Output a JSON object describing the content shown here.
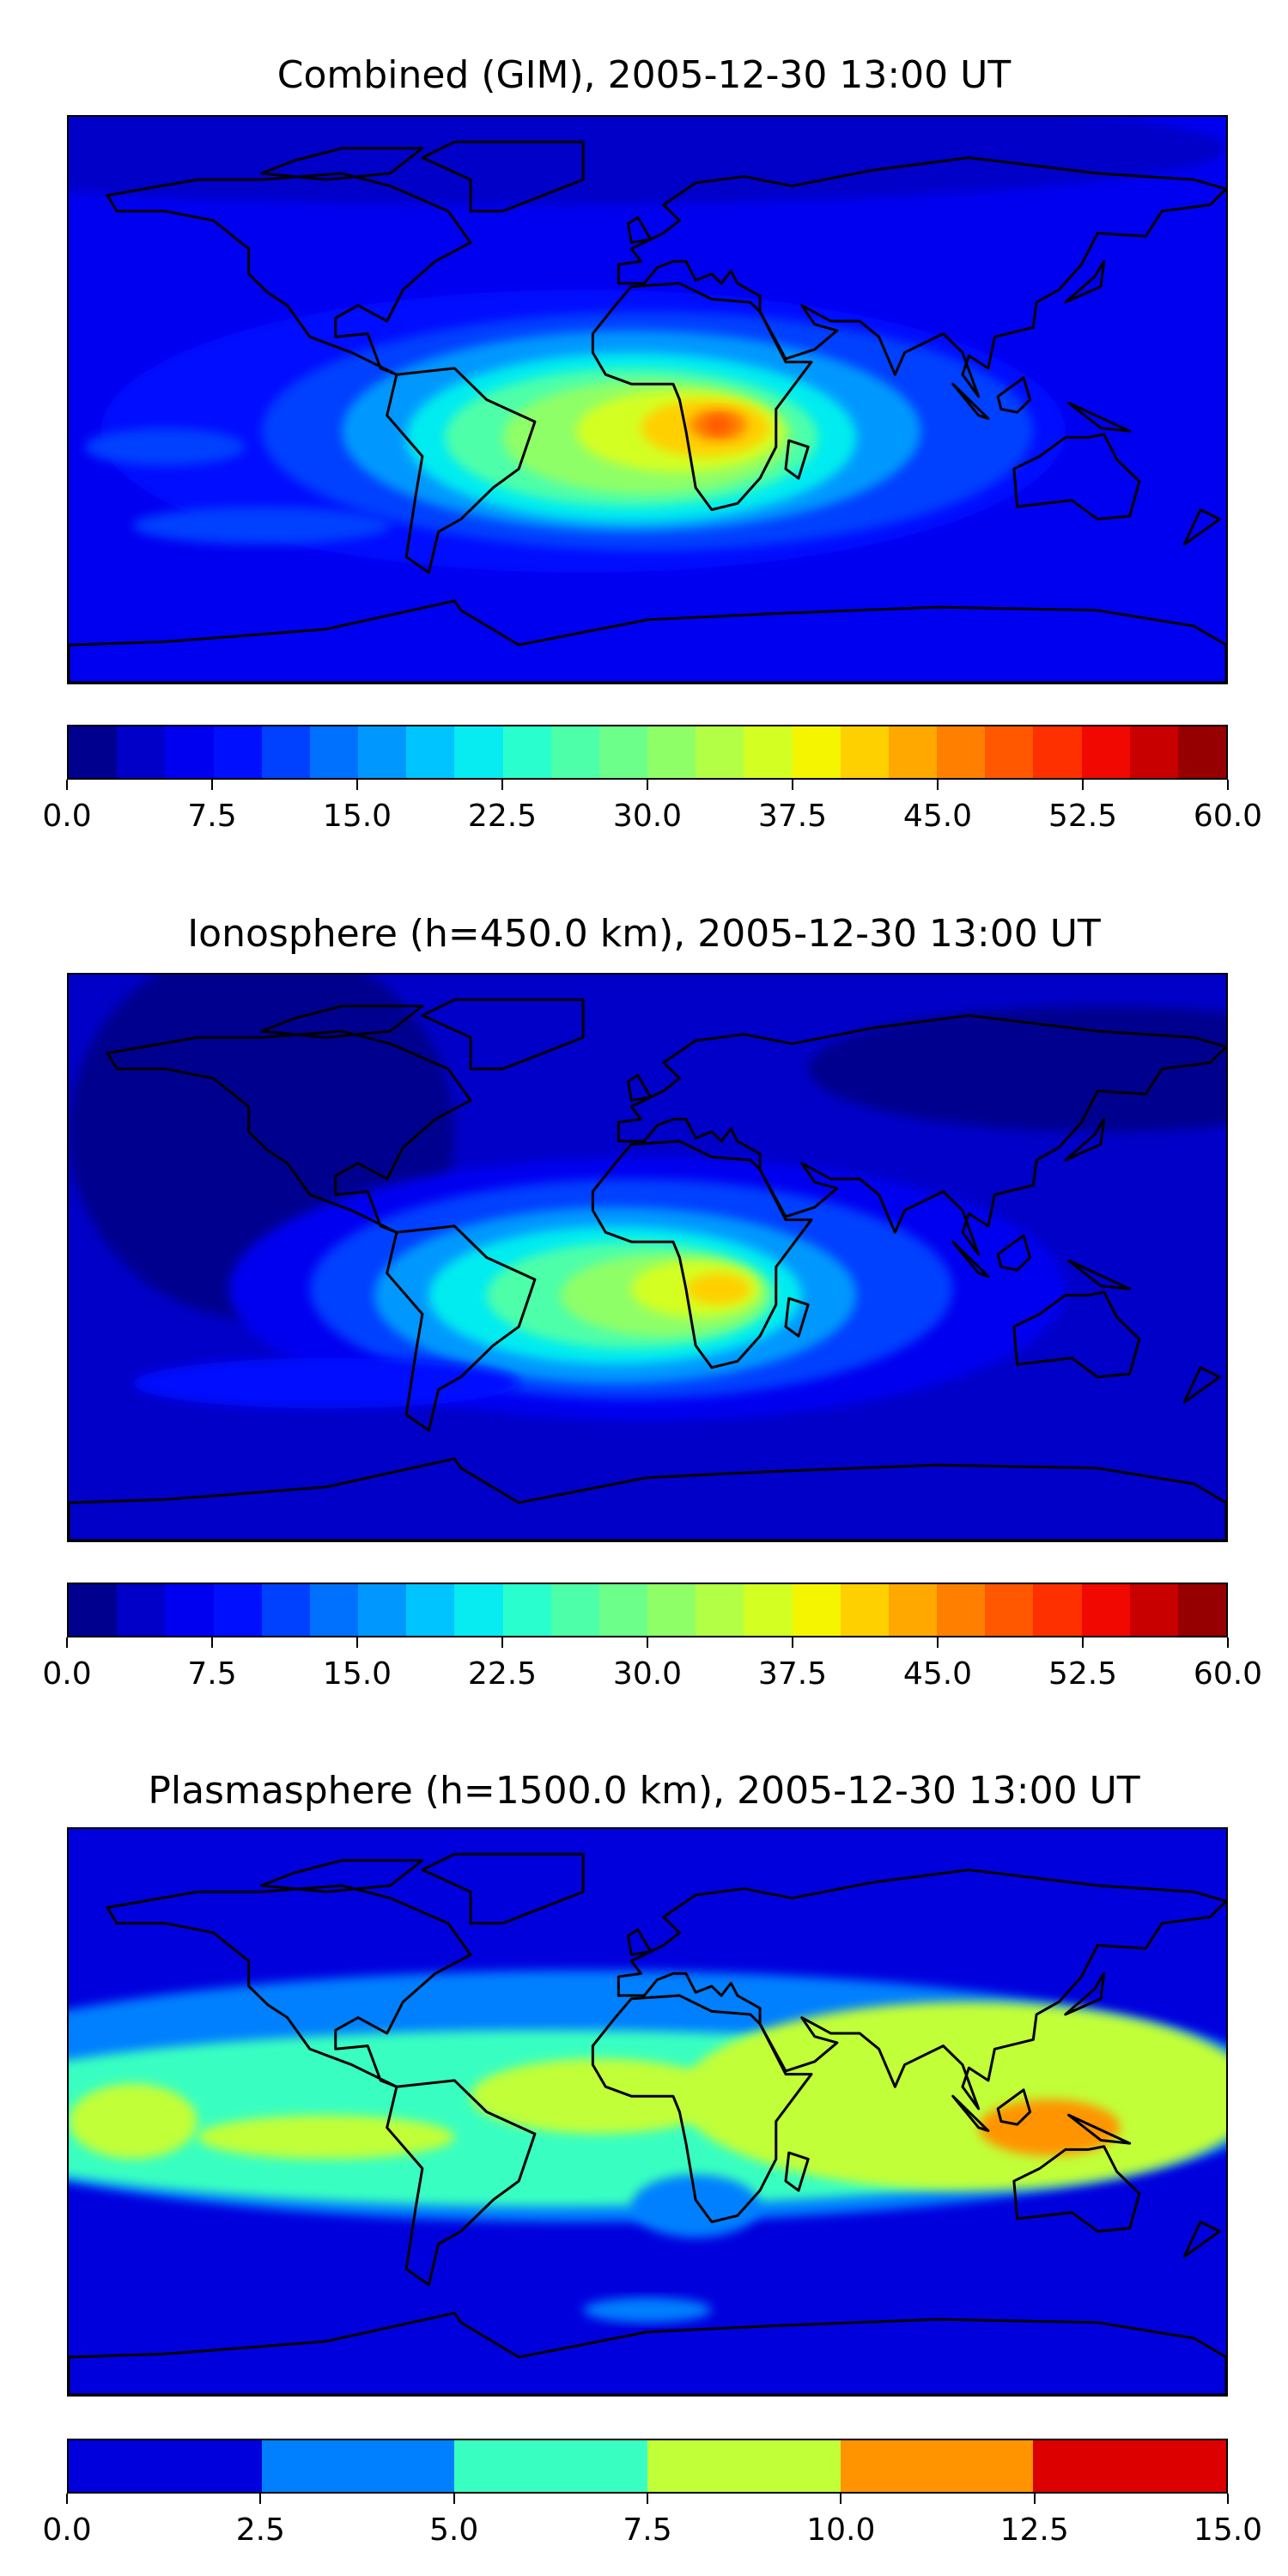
{
  "chart_data": [
    {
      "type": "heatmap",
      "title": "Combined (GIM), 2005-12-30 13:00 UT",
      "projection": "global lon/lat map with coastlines",
      "levels_min": 0.0,
      "levels_max": 60.0,
      "n_levels": 24,
      "colorbar_ticks": [
        "0.0",
        "7.5",
        "15.0",
        "22.5",
        "30.0",
        "37.5",
        "45.0",
        "52.5",
        "60.0"
      ],
      "colors": [
        "#00008f",
        "#0000c8",
        "#0000f0",
        "#0010ff",
        "#0040ff",
        "#0070ff",
        "#0098ff",
        "#00c4ff",
        "#06ecf0",
        "#29ffce",
        "#4dffa9",
        "#6cff8a",
        "#8fff68",
        "#b3ff45",
        "#d4ff23",
        "#f5f500",
        "#ffd000",
        "#ffa800",
        "#ff8000",
        "#ff5800",
        "#ff3000",
        "#f10800",
        "#c80000",
        "#960000"
      ],
      "max_region": "southern Africa, ~47.5-50"
    },
    {
      "type": "heatmap",
      "title": "Ionosphere  (h=450.0 km), 2005-12-30 13:00 UT",
      "projection": "global lon/lat map with coastlines",
      "levels_min": 0.0,
      "levels_max": 60.0,
      "n_levels": 24,
      "colorbar_ticks": [
        "0.0",
        "7.5",
        "15.0",
        "22.5",
        "30.0",
        "37.5",
        "45.0",
        "52.5",
        "60.0"
      ],
      "colors": [
        "#00008f",
        "#0000c8",
        "#0000f0",
        "#0010ff",
        "#0040ff",
        "#0070ff",
        "#0098ff",
        "#00c4ff",
        "#06ecf0",
        "#29ffce",
        "#4dffa9",
        "#6cff8a",
        "#8fff68",
        "#b3ff45",
        "#d4ff23",
        "#f5f500",
        "#ffd000",
        "#ffa800",
        "#ff8000",
        "#ff5800",
        "#ff3000",
        "#f10800",
        "#c80000",
        "#960000"
      ],
      "max_region": "southern Africa, ~42.5-45"
    },
    {
      "type": "heatmap",
      "title": "Plasmasphere (h=1500.0 km), 2005-12-30 13:00 UT",
      "projection": "global lon/lat map with coastlines",
      "levels_min": 0.0,
      "levels_max": 15.0,
      "n_levels": 6,
      "colorbar_ticks": [
        "0.0",
        "2.5",
        "5.0",
        "7.5",
        "10.0",
        "12.5",
        "15.0"
      ],
      "colors": [
        "#0000dd",
        "#0080ff",
        "#38ffc1",
        "#c1ff38",
        "#ff9400",
        "#dd0000"
      ],
      "max_region": "Indonesia / northern Australia, ~10-12.5"
    }
  ]
}
